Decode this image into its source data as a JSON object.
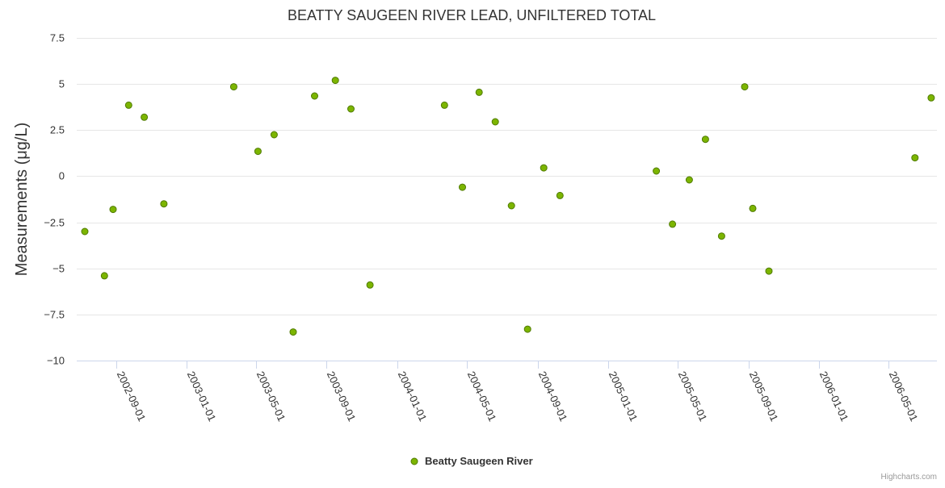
{
  "chart_data": {
    "type": "scatter",
    "title": "BEATTY SAUGEEN RIVER LEAD, UNFILTERED TOTAL",
    "xlabel": "",
    "ylabel": "Measurements (μg/L)",
    "ylim": [
      -10,
      7.5
    ],
    "y_ticks": [
      "7.5",
      "5",
      "2.5",
      "0",
      "−2.5",
      "−5",
      "−7.5",
      "−10"
    ],
    "y_tick_values": [
      7.5,
      5,
      2.5,
      0,
      -2.5,
      -5,
      -7.5,
      -10
    ],
    "x_ticks": [
      "2002-09-01",
      "2003-01-01",
      "2003-05-01",
      "2003-09-01",
      "2004-01-01",
      "2004-05-01",
      "2004-09-01",
      "2005-01-01",
      "2005-05-01",
      "2005-09-01",
      "2006-01-01",
      "2006-05-01"
    ],
    "xlim": [
      "2002-06-25",
      "2006-07-24"
    ],
    "grid": true,
    "legend": "bottom-center",
    "series": [
      {
        "name": "Beatty Saugeen River",
        "color": "#7cb500",
        "points": [
          {
            "x": "2002-07-09",
            "y": -3.0
          },
          {
            "x": "2002-08-12",
            "y": -5.4
          },
          {
            "x": "2002-08-27",
            "y": -1.8
          },
          {
            "x": "2002-09-23",
            "y": 3.85
          },
          {
            "x": "2002-10-20",
            "y": 3.2
          },
          {
            "x": "2002-11-23",
            "y": -1.5
          },
          {
            "x": "2003-03-24",
            "y": 4.85
          },
          {
            "x": "2003-05-05",
            "y": 1.35
          },
          {
            "x": "2003-06-02",
            "y": 2.25
          },
          {
            "x": "2003-07-05",
            "y": -8.45
          },
          {
            "x": "2003-08-11",
            "y": 4.35
          },
          {
            "x": "2003-09-16",
            "y": 5.2
          },
          {
            "x": "2003-10-13",
            "y": 3.65
          },
          {
            "x": "2003-11-15",
            "y": -5.9
          },
          {
            "x": "2004-03-23",
            "y": 3.85
          },
          {
            "x": "2004-04-23",
            "y": -0.6
          },
          {
            "x": "2004-05-22",
            "y": 4.55
          },
          {
            "x": "2004-06-19",
            "y": 2.95
          },
          {
            "x": "2004-07-17",
            "y": -1.6
          },
          {
            "x": "2004-08-14",
            "y": -8.3
          },
          {
            "x": "2004-09-11",
            "y": 0.45
          },
          {
            "x": "2004-10-09",
            "y": -1.05
          },
          {
            "x": "2005-03-25",
            "y": 0.28
          },
          {
            "x": "2005-04-22",
            "y": -2.6
          },
          {
            "x": "2005-05-21",
            "y": -0.2
          },
          {
            "x": "2005-06-18",
            "y": 2.0
          },
          {
            "x": "2005-07-16",
            "y": -3.25
          },
          {
            "x": "2005-08-25",
            "y": 4.85
          },
          {
            "x": "2005-09-08",
            "y": -1.75
          },
          {
            "x": "2005-10-06",
            "y": -5.15
          },
          {
            "x": "2006-06-16",
            "y": 1.0
          },
          {
            "x": "2006-07-14",
            "y": 4.25
          }
        ]
      }
    ]
  },
  "credits": "Highcharts.com"
}
